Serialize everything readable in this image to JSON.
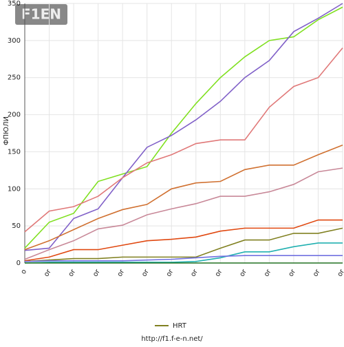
{
  "logo": "F1EN",
  "chart_data": {
    "type": "line",
    "y_label": "ФПЮЛИ",
    "categories": [
      "o",
      "or",
      "or",
      "or",
      "or",
      "or",
      "or",
      "or",
      "or",
      "or",
      "or",
      "or",
      "or",
      "or"
    ],
    "ylim": [
      0,
      350
    ],
    "yticks": [
      0,
      50,
      100,
      150,
      200,
      250,
      300,
      350
    ],
    "grid": true,
    "series": [
      {
        "color": "#80e020",
        "values": [
          20,
          55,
          67,
          110,
          120,
          130,
          175,
          215,
          250,
          278,
          300,
          305,
          328,
          345
        ]
      },
      {
        "color": "#8060c8",
        "values": [
          17,
          20,
          60,
          73,
          115,
          156,
          172,
          193,
          218,
          250,
          273,
          312,
          330,
          350
        ]
      },
      {
        "color": "#e07878",
        "values": [
          42,
          70,
          76,
          90,
          115,
          135,
          146,
          161,
          166,
          166,
          210,
          238,
          250,
          290
        ]
      },
      {
        "color": "#d07030",
        "values": [
          18,
          30,
          45,
          60,
          72,
          79,
          100,
          108,
          110,
          126,
          132,
          132,
          146,
          159
        ]
      },
      {
        "color": "#c88898",
        "values": [
          5,
          18,
          30,
          46,
          51,
          65,
          73,
          80,
          90,
          90,
          96,
          106,
          123,
          128
        ]
      },
      {
        "color": "#e04810",
        "values": [
          3,
          8,
          18,
          18,
          24,
          30,
          32,
          35,
          43,
          47,
          47,
          47,
          58,
          58
        ]
      },
      {
        "name": "HRT",
        "color": "#808020",
        "values": [
          2,
          4,
          6,
          6,
          8,
          8,
          8,
          8,
          20,
          31,
          31,
          40,
          40,
          47
        ]
      },
      {
        "color": "#20b0b0",
        "values": [
          0,
          1,
          1,
          1,
          1,
          1,
          1,
          2,
          7,
          15,
          15,
          22,
          27,
          27
        ]
      },
      {
        "color": "#7070e0",
        "values": [
          2,
          3,
          3,
          3,
          3,
          4,
          5,
          7,
          9,
          10,
          10,
          10,
          10,
          10
        ]
      },
      {
        "color": "#207020",
        "values": [
          0,
          0,
          0,
          0,
          0,
          0,
          0,
          0,
          0,
          0,
          0,
          0,
          0,
          0
        ]
      }
    ]
  },
  "footer": "http://f1.f-e-n.net/"
}
